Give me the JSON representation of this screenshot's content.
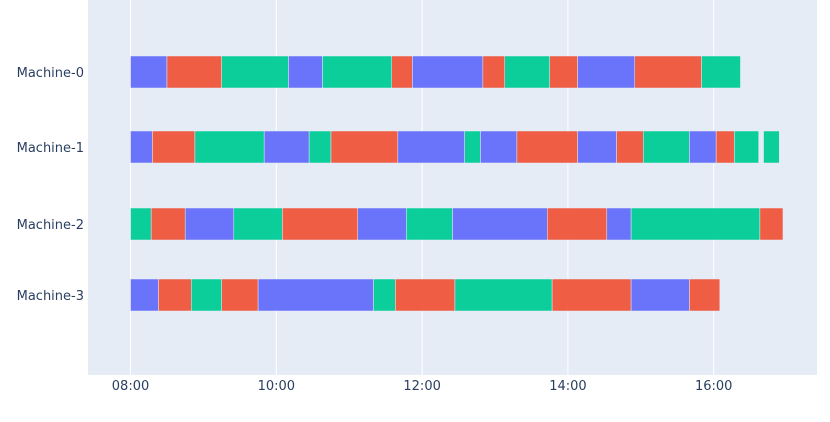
{
  "chart_data": {
    "type": "gantt",
    "title": "",
    "xlabel": "",
    "ylabel": "",
    "x_axis": {
      "type": "time",
      "range": [
        "07:25",
        "17:25"
      ],
      "ticks": [
        "08:00",
        "10:00",
        "12:00",
        "14:00",
        "16:00"
      ]
    },
    "grid": true,
    "legend": "none",
    "colors": {
      "background": "#e5ecf6",
      "grid": "#ffffff",
      "axis_text": "#2a3f5f",
      "palette": [
        "#636efa",
        "#ef553b",
        "#00cc96"
      ]
    },
    "categories": [
      "Machine-0",
      "Machine-1",
      "Machine-2",
      "Machine-3"
    ],
    "tasks": [
      {
        "machine": "Machine-0",
        "segments": [
          {
            "start": "08:00",
            "end": "08:30",
            "color": "#636efa"
          },
          {
            "start": "08:30",
            "end": "09:15",
            "color": "#ef553b"
          },
          {
            "start": "09:15",
            "end": "10:10",
            "color": "#00cc96"
          },
          {
            "start": "10:10",
            "end": "10:38",
            "color": "#636efa"
          },
          {
            "start": "10:38",
            "end": "11:35",
            "color": "#00cc96"
          },
          {
            "start": "11:35",
            "end": "11:52",
            "color": "#ef553b"
          },
          {
            "start": "11:52",
            "end": "12:50",
            "color": "#636efa"
          },
          {
            "start": "12:50",
            "end": "13:08",
            "color": "#ef553b"
          },
          {
            "start": "13:08",
            "end": "13:45",
            "color": "#00cc96"
          },
          {
            "start": "13:45",
            "end": "14:08",
            "color": "#ef553b"
          },
          {
            "start": "14:08",
            "end": "14:55",
            "color": "#636efa"
          },
          {
            "start": "14:55",
            "end": "15:50",
            "color": "#ef553b"
          },
          {
            "start": "15:50",
            "end": "16:22",
            "color": "#00cc96"
          }
        ]
      },
      {
        "machine": "Machine-1",
        "segments": [
          {
            "start": "08:00",
            "end": "08:18",
            "color": "#636efa"
          },
          {
            "start": "08:18",
            "end": "08:53",
            "color": "#ef553b"
          },
          {
            "start": "08:53",
            "end": "09:50",
            "color": "#00cc96"
          },
          {
            "start": "09:50",
            "end": "10:27",
            "color": "#636efa"
          },
          {
            "start": "10:27",
            "end": "10:45",
            "color": "#00cc96"
          },
          {
            "start": "10:45",
            "end": "11:40",
            "color": "#ef553b"
          },
          {
            "start": "11:40",
            "end": "12:35",
            "color": "#636efa"
          },
          {
            "start": "12:35",
            "end": "12:48",
            "color": "#00cc96"
          },
          {
            "start": "12:48",
            "end": "13:18",
            "color": "#636efa"
          },
          {
            "start": "13:18",
            "end": "14:08",
            "color": "#ef553b"
          },
          {
            "start": "14:08",
            "end": "14:40",
            "color": "#636efa"
          },
          {
            "start": "14:40",
            "end": "15:02",
            "color": "#ef553b"
          },
          {
            "start": "15:02",
            "end": "15:40",
            "color": "#00cc96"
          },
          {
            "start": "15:40",
            "end": "16:02",
            "color": "#636efa"
          },
          {
            "start": "16:02",
            "end": "16:17",
            "color": "#ef553b"
          },
          {
            "start": "16:17",
            "end": "16:37",
            "color": "#00cc96"
          },
          {
            "start": "16:41",
            "end": "16:54",
            "color": "#00cc96"
          }
        ]
      },
      {
        "machine": "Machine-2",
        "segments": [
          {
            "start": "08:00",
            "end": "08:17",
            "color": "#00cc96"
          },
          {
            "start": "08:17",
            "end": "08:45",
            "color": "#ef553b"
          },
          {
            "start": "08:45",
            "end": "09:25",
            "color": "#636efa"
          },
          {
            "start": "09:25",
            "end": "10:05",
            "color": "#00cc96"
          },
          {
            "start": "10:05",
            "end": "11:07",
            "color": "#ef553b"
          },
          {
            "start": "11:07",
            "end": "11:47",
            "color": "#636efa"
          },
          {
            "start": "11:47",
            "end": "12:25",
            "color": "#00cc96"
          },
          {
            "start": "12:25",
            "end": "13:43",
            "color": "#636efa"
          },
          {
            "start": "13:43",
            "end": "14:32",
            "color": "#ef553b"
          },
          {
            "start": "14:32",
            "end": "14:52",
            "color": "#636efa"
          },
          {
            "start": "14:52",
            "end": "16:38",
            "color": "#00cc96"
          },
          {
            "start": "16:38",
            "end": "16:57",
            "color": "#ef553b"
          }
        ]
      },
      {
        "machine": "Machine-3",
        "segments": [
          {
            "start": "08:00",
            "end": "08:23",
            "color": "#636efa"
          },
          {
            "start": "08:23",
            "end": "08:50",
            "color": "#ef553b"
          },
          {
            "start": "08:50",
            "end": "09:15",
            "color": "#00cc96"
          },
          {
            "start": "09:15",
            "end": "09:45",
            "color": "#ef553b"
          },
          {
            "start": "09:45",
            "end": "11:20",
            "color": "#636efa"
          },
          {
            "start": "11:20",
            "end": "11:38",
            "color": "#00cc96"
          },
          {
            "start": "11:38",
            "end": "12:27",
            "color": "#ef553b"
          },
          {
            "start": "12:27",
            "end": "13:47",
            "color": "#00cc96"
          },
          {
            "start": "13:47",
            "end": "14:52",
            "color": "#ef553b"
          },
          {
            "start": "14:52",
            "end": "15:40",
            "color": "#636efa"
          },
          {
            "start": "15:40",
            "end": "16:05",
            "color": "#ef553b"
          }
        ]
      }
    ]
  }
}
